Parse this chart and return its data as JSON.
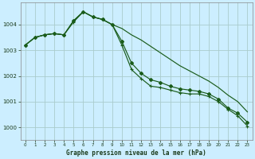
{
  "title": "Graphe pression niveau de la mer (hPa)",
  "background_color": "#cceeff",
  "grid_color": "#aacccc",
  "line_color": "#1a5c1a",
  "xlim": [
    -0.5,
    23.5
  ],
  "ylim": [
    999.5,
    1004.85
  ],
  "yticks": [
    1000,
    1001,
    1002,
    1003,
    1004
  ],
  "xtick_labels": [
    "0",
    "1",
    "2",
    "3",
    "4",
    "5",
    "6",
    "7",
    "8",
    "9",
    "10",
    "11",
    "12",
    "13",
    "14",
    "15",
    "16",
    "17",
    "18",
    "19",
    "20",
    "21",
    "22",
    "23"
  ],
  "series1": [
    1003.2,
    1003.5,
    1003.6,
    1003.65,
    1003.6,
    1004.15,
    1004.5,
    1004.3,
    1004.2,
    1004.0,
    1003.85,
    1003.6,
    1003.4,
    1003.15,
    1002.9,
    1002.65,
    1002.4,
    1002.2,
    1002.0,
    1001.8,
    1001.55,
    1001.25,
    1001.0,
    1000.6
  ],
  "series2": [
    1003.2,
    1003.5,
    1003.6,
    1003.65,
    1003.6,
    1004.15,
    1004.5,
    1004.3,
    1004.2,
    1004.0,
    1003.35,
    1002.5,
    1002.1,
    1001.85,
    1001.75,
    1001.6,
    1001.5,
    1001.45,
    1001.4,
    1001.3,
    1001.1,
    1000.75,
    1000.55,
    1000.2
  ],
  "series3": [
    1003.2,
    1003.5,
    1003.6,
    1003.65,
    1003.6,
    1004.1,
    1004.5,
    1004.3,
    1004.2,
    1004.0,
    1003.2,
    1002.25,
    1001.9,
    1001.6,
    1001.55,
    1001.45,
    1001.35,
    1001.3,
    1001.3,
    1001.2,
    1001.0,
    1000.7,
    1000.45,
    1000.05
  ]
}
